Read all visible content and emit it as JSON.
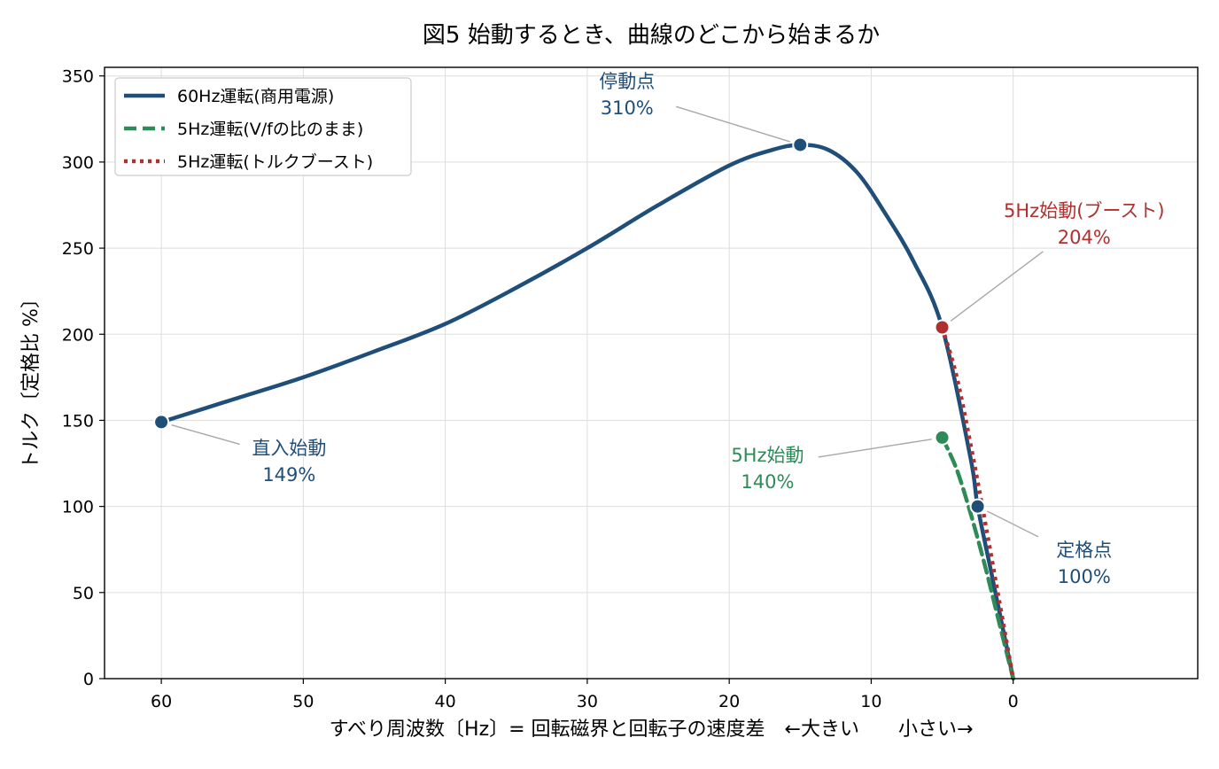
{
  "chart_data": {
    "type": "line",
    "title": "図5 始動するとき、曲線のどこから始まるか",
    "xlabel": "すべり周波数〔Hz〕= 回転磁界と回転子の速度差　←大きい　　小さい→",
    "ylabel": "トルク〔定格比 %〕",
    "x_reversed": true,
    "xlim": [
      64,
      -13
    ],
    "ylim": [
      0,
      355
    ],
    "xticks": [
      60,
      50,
      40,
      30,
      20,
      10,
      0
    ],
    "yticks": [
      0,
      50,
      100,
      150,
      200,
      250,
      300,
      350
    ],
    "grid": true,
    "legend_position": "top-left",
    "colors": {
      "blue": "#1f4e79",
      "green": "#2e8b57",
      "red": "#b03030"
    },
    "series": [
      {
        "name": "60Hz運転(商用電源)",
        "style": "solid",
        "color": "#1f4e79",
        "x": [
          60,
          55,
          50,
          45,
          40,
          35,
          30,
          25,
          20,
          17,
          15,
          13,
          11,
          9,
          7,
          5,
          3,
          2.5,
          1.5,
          0
        ],
        "y": [
          149,
          162,
          175,
          190,
          206,
          227,
          250,
          275,
          298,
          307,
          310,
          307,
          294,
          270,
          242,
          204,
          128,
          100,
          60,
          0
        ]
      },
      {
        "name": "5Hz運転(V/fの比のまま)",
        "style": "dashed",
        "color": "#2e8b57",
        "x": [
          5,
          4,
          3,
          2,
          1,
          0
        ],
        "y": [
          140,
          122,
          96,
          66,
          33,
          0
        ]
      },
      {
        "name": "5Hz運転(トルクブースト)",
        "style": "dotted",
        "color": "#b03030",
        "x": [
          5,
          4,
          3,
          2,
          1,
          0
        ],
        "y": [
          204,
          176,
          136,
          92,
          46,
          0
        ]
      }
    ],
    "points": [
      {
        "x": 60,
        "y": 149,
        "color": "#1f4e79",
        "line1": "直入始動",
        "line2": "149%",
        "lx": 51,
        "ly": 128
      },
      {
        "x": 15,
        "y": 310,
        "color": "#1f4e79",
        "line1": "停動点",
        "line2": "310%",
        "lx": 27.2,
        "ly": 341
      },
      {
        "x": 5,
        "y": 204,
        "color": "#b03030",
        "line1": "5Hz始動(ブースト)",
        "line2": "204%",
        "lx": -5,
        "ly": 266
      },
      {
        "x": 5,
        "y": 140,
        "color": "#2e8b57",
        "line1": "5Hz始動",
        "line2": "140%",
        "lx": 17.3,
        "ly": 124
      },
      {
        "x": 2.5,
        "y": 100,
        "color": "#1f4e79",
        "line1": "定格点",
        "line2": "100%",
        "lx": -5,
        "ly": 69
      }
    ]
  }
}
